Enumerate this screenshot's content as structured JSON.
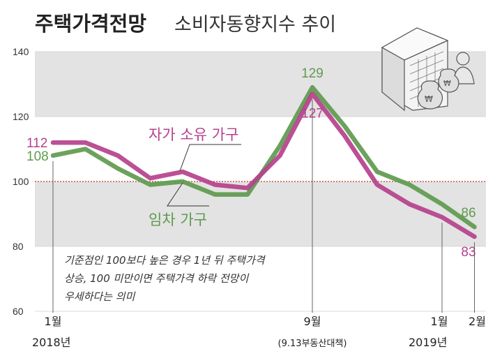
{
  "title": "주택가격전망",
  "subtitle": "소비자동향지수 추이",
  "note_lines": [
    "기준점인 100보다 높은 경우 1년 뒤 주택가격",
    "상승, 100 미만이면 주택가격 하락 전망이",
    "우세하다는 의미"
  ],
  "x_labels": {
    "start_month": "1월",
    "start_year": "2018년",
    "mid_month": "9월",
    "mid_note": "(9.13부동산대책)",
    "end_month1": "1월",
    "end_month2": "2월",
    "end_year": "2019년"
  },
  "chart_data": {
    "type": "line",
    "ylim": [
      60,
      140
    ],
    "y_ticks": [
      60,
      80,
      100,
      120,
      140
    ],
    "reference_line": 100,
    "categories": [
      "2018-01",
      "2018-02",
      "2018-03",
      "2018-04",
      "2018-05",
      "2018-06",
      "2018-07",
      "2018-08",
      "2018-09",
      "2018-10",
      "2018-11",
      "2018-12",
      "2019-01",
      "2019-02"
    ],
    "series": [
      {
        "name": "자가 소유 가구",
        "color": "#b5418c",
        "values": [
          112,
          112,
          108,
          101,
          103,
          99,
          98,
          108,
          127,
          114,
          99,
          93,
          89,
          83
        ]
      },
      {
        "name": "임차 가구",
        "color": "#5e9a4e",
        "values": [
          108,
          110,
          104,
          99,
          100,
          96,
          96,
          111,
          129,
          117,
          103,
          99,
          93,
          86
        ]
      }
    ],
    "data_labels": {
      "owner_start": "112",
      "owner_peak": "127",
      "owner_end": "83",
      "renter_start": "108",
      "renter_peak": "129",
      "renter_end": "86"
    },
    "colors": {
      "band": "#e3e3e3",
      "reference_line": "#c0392b",
      "owner": "#b5418c",
      "renter": "#5e9a4e"
    }
  }
}
